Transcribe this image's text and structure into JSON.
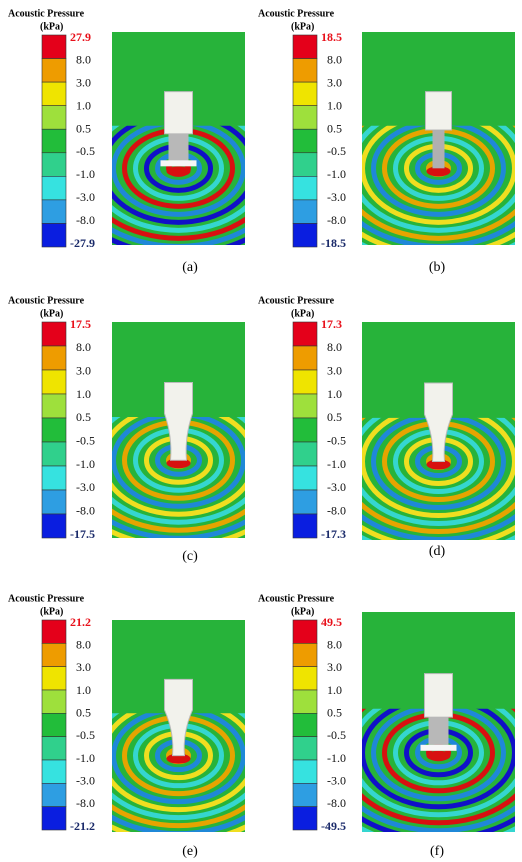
{
  "panels": [
    {
      "title": "Acoustic Pressure",
      "unit": "(kPa)",
      "levels": [
        "27.9",
        "8.0",
        "3.0",
        "1.0",
        "0.5",
        "-0.5",
        "-1.0",
        "-3.0",
        "-8.0",
        "-27.9"
      ],
      "caption": "(a)"
    },
    {
      "title": "Acoustic Pressure",
      "unit": "(kPa)",
      "levels": [
        "18.5",
        "8.0",
        "3.0",
        "1.0",
        "0.5",
        "-0.5",
        "-1.0",
        "-3.0",
        "-8.0",
        "-18.5"
      ],
      "caption": "(b)"
    },
    {
      "title": "Acoustic Pressure",
      "unit": "(kPa)",
      "levels": [
        "17.5",
        "8.0",
        "3.0",
        "1.0",
        "0.5",
        "-0.5",
        "-1.0",
        "-3.0",
        "-8.0",
        "-17.5"
      ],
      "caption": "(c)"
    },
    {
      "title": "Acoustic Pressure",
      "unit": "(kPa)",
      "levels": [
        "17.3",
        "8.0",
        "3.0",
        "1.0",
        "0.5",
        "-0.5",
        "-1.0",
        "-3.0",
        "-8.0",
        "-17.3"
      ],
      "caption": "(d)"
    },
    {
      "title": "Acoustic Pressure",
      "unit": "(kPa)",
      "levels": [
        "21.2",
        "8.0",
        "3.0",
        "1.0",
        "0.5",
        "-0.5",
        "-1.0",
        "-3.0",
        "-8.0",
        "-21.2"
      ],
      "caption": "(e)"
    },
    {
      "title": "Acoustic Pressure",
      "unit": "(kPa)",
      "levels": [
        "49.5",
        "8.0",
        "3.0",
        "1.0",
        "0.5",
        "-0.5",
        "-1.0",
        "-3.0",
        "-8.0",
        "-49.5"
      ],
      "caption": "(f)"
    }
  ]
}
